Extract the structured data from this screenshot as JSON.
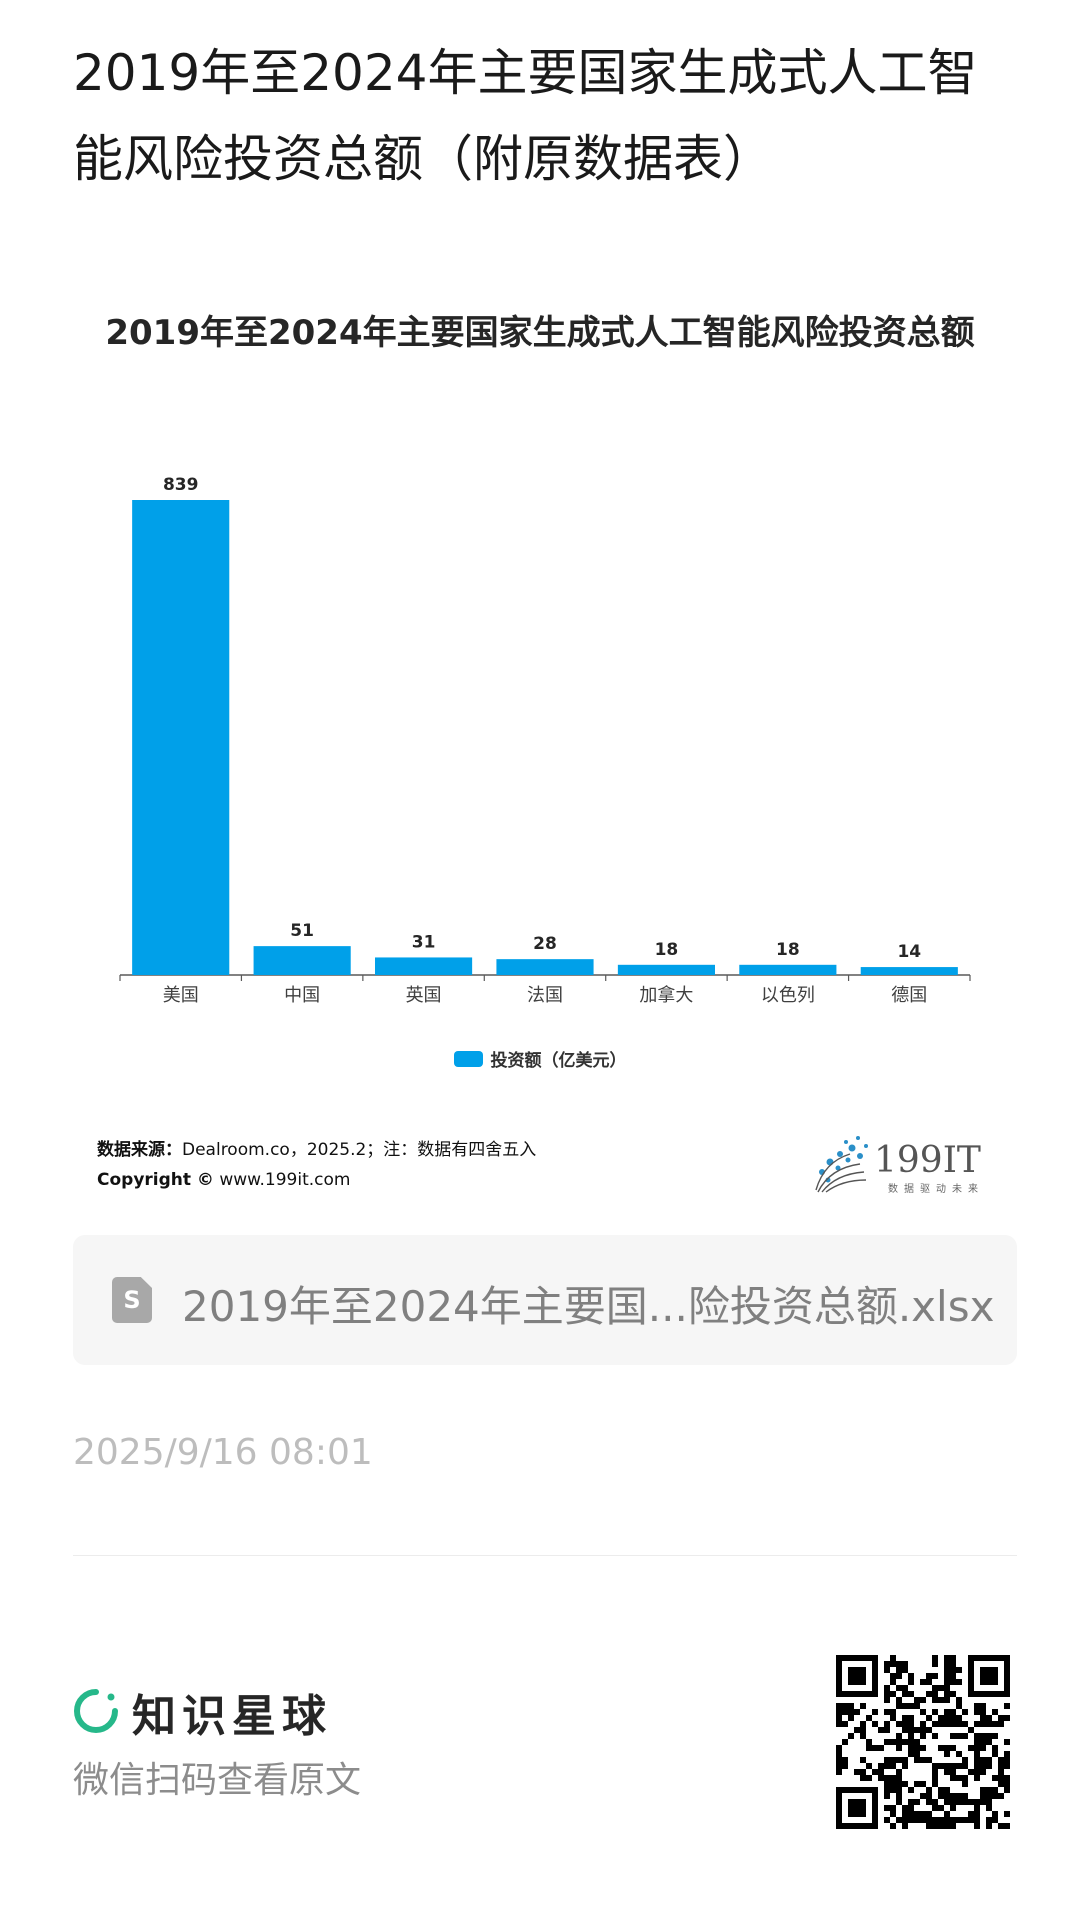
{
  "page": {
    "title": "2019年至2024年主要国家生成式人工智能风险投资总额（附原数据表）"
  },
  "chart_data": {
    "type": "bar",
    "title": "2019年至2024年主要国家生成式人工智能风险投资总额",
    "categories": [
      "美国",
      "中国",
      "英国",
      "法国",
      "加拿大",
      "以色列",
      "德国"
    ],
    "series": [
      {
        "name": "投资额（亿美元）",
        "values": [
          839,
          51,
          31,
          28,
          18,
          18,
          14
        ],
        "color": "#00a0e9"
      }
    ],
    "ylim": [
      0,
      839
    ],
    "grid": false,
    "legend_position": "bottom",
    "data_labels": true
  },
  "source": {
    "label": "数据来源：",
    "text": "Dealroom.co，2025.2；注：数据有四舍五入",
    "copyright_label": "Copyright ©",
    "copyright_site": "www.199it.com"
  },
  "brand": {
    "name": "199IT",
    "slogan": "数据驱动未来"
  },
  "attachment": {
    "icon": "spreadsheet-file-icon",
    "filename": "2019年至2024年主要国...险投资总额.xlsx"
  },
  "post": {
    "timestamp": "2025/9/16 08:01"
  },
  "footer": {
    "app_name": "知识星球",
    "scan_hint": "微信扫码查看原文",
    "accent_color": "#26b88a"
  }
}
